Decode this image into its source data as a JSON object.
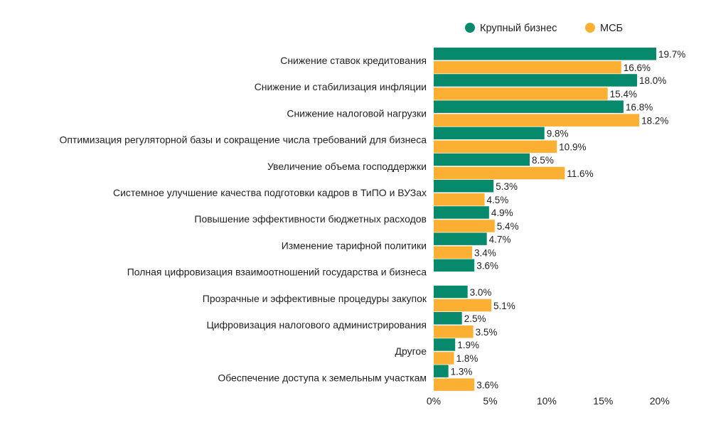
{
  "chart_data": {
    "type": "bar",
    "orientation": "horizontal",
    "title": "",
    "xlabel": "",
    "ylabel": "",
    "xlim": [
      0,
      20
    ],
    "x_ticks": [
      "0%",
      "5%",
      "10%",
      "15%",
      "20%"
    ],
    "x_tick_values": [
      0,
      5,
      10,
      15,
      20
    ],
    "grid": false,
    "legend_position": "top-right",
    "colors": {
      "large": "#078a6c",
      "sme": "#fbb034"
    },
    "categories": [
      "Снижение ставок кредитования",
      "Снижение и стабилизация инфляции",
      "Снижение налоговой нагрузки",
      "Оптимизация регуляторной базы и сокращение числа требований для бизнеса",
      "Увеличение объема господдержки",
      "Системное улучшение качества подготовки кадров в ТиПО и ВУЗах",
      "Повышение эффективности бюджетных расходов",
      "Изменение тарифной политики",
      "Полная цифровизация взаимоотношений государства и бизнеса",
      "Прозрачные и эффективные процедуры закупок",
      "Цифровизация налогового администрирования",
      "Другое",
      "Обеспечение доступа к земельным участкам"
    ],
    "series": [
      {
        "name": "Крупный бизнес",
        "values": [
          19.7,
          18.0,
          16.8,
          9.8,
          8.5,
          5.3,
          4.9,
          4.7,
          3.6,
          3.0,
          2.5,
          1.9,
          1.3
        ],
        "labels": [
          "19.7%",
          "18.0%",
          "16.8%",
          "9.8%",
          "8.5%",
          "5.3%",
          "4.9%",
          "4.7%",
          "3.6%",
          "3.0%",
          "2.5%",
          "1.9%",
          "1.3%"
        ]
      },
      {
        "name": "МСБ",
        "values": [
          16.6,
          15.4,
          18.2,
          10.9,
          11.6,
          4.5,
          5.4,
          3.4,
          null,
          5.1,
          3.5,
          1.8,
          3.6
        ],
        "labels": [
          "16.6%",
          "15.4%",
          "18.2%",
          "10.9%",
          "11.6%",
          "4.5%",
          "5.4%",
          "3.4%",
          null,
          "5.1%",
          "3.5%",
          "1.8%",
          "3.6%"
        ]
      }
    ]
  }
}
